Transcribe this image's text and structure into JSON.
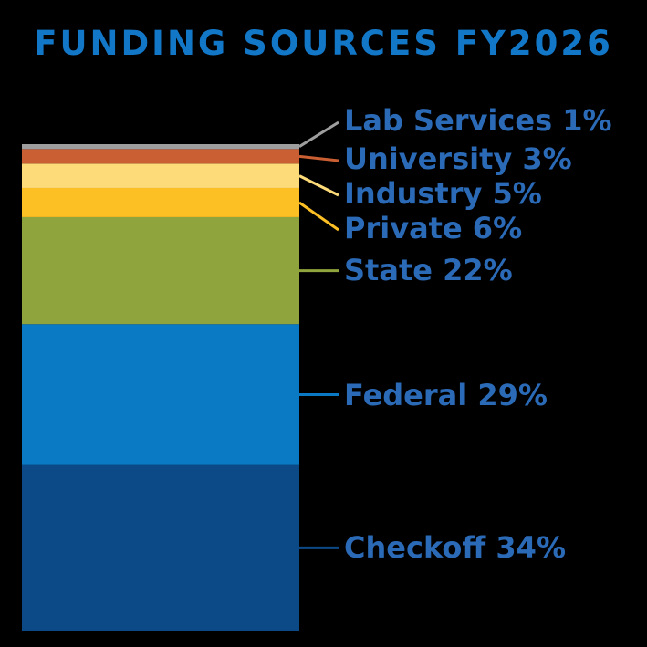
{
  "title": "FUNDING SOURCES FY2026",
  "colors": {
    "background": "#000000",
    "title": "#1377c8",
    "label": "#2b6ab6"
  },
  "chart_data": {
    "type": "bar",
    "orientation": "stacked-vertical",
    "title": "FUNDING SOURCES FY2026",
    "unit": "%",
    "segments": [
      {
        "name": "Checkoff",
        "value": 34,
        "label": "Checkoff 34%",
        "color": "#0b4a86",
        "leader_color": "#0b4a86"
      },
      {
        "name": "Federal",
        "value": 29,
        "label": "Federal 29%",
        "color": "#0a7ac4",
        "leader_color": "#0a7ac4"
      },
      {
        "name": "State",
        "value": 22,
        "label": "State 22%",
        "color": "#8fa43c",
        "leader_color": "#8fa43c"
      },
      {
        "name": "Private",
        "value": 6,
        "label": "Private 6%",
        "color": "#fcbf24",
        "leader_color": "#fcbf24"
      },
      {
        "name": "Industry",
        "value": 5,
        "label": "Industry 5%",
        "color": "#fedb79",
        "leader_color": "#fedb79"
      },
      {
        "name": "University",
        "value": 3,
        "label": "University 3%",
        "color": "#c95f32",
        "leader_color": "#c95f32"
      },
      {
        "name": "Lab Services",
        "value": 1,
        "label": "Lab Services 1%",
        "color": "#9e9e9e",
        "leader_color": "#9e9e9e"
      }
    ]
  }
}
